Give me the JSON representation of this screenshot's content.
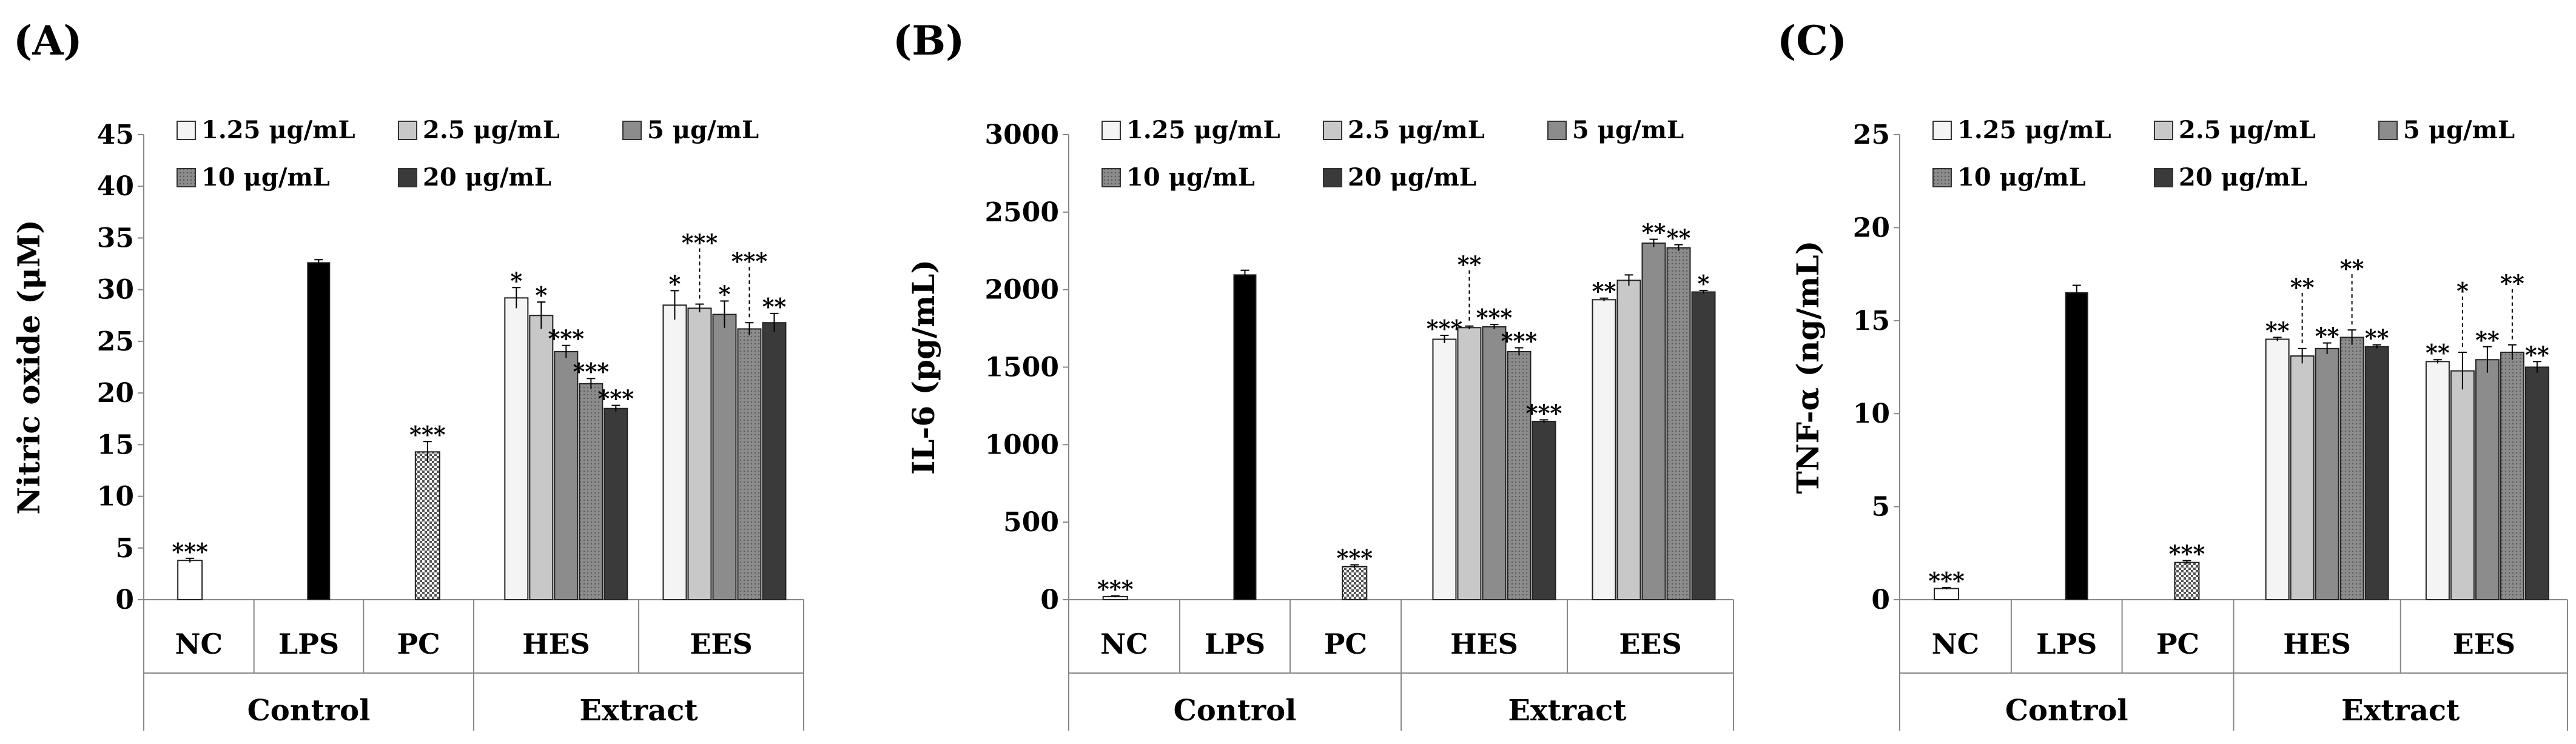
{
  "chart_data": [
    {
      "type": "bar",
      "panel": "(A)",
      "ylabel": "Nitric oxide (μM)",
      "ylim": [
        0,
        45
      ],
      "yticks": [
        "0",
        "5",
        "10",
        "15",
        "20",
        "25",
        "30",
        "35",
        "40",
        "45"
      ],
      "categories": [
        "NC",
        "LPS",
        "PC",
        "HES",
        "EES"
      ],
      "groups": [
        {
          "label": "Control",
          "categories": [
            "NC",
            "LPS",
            "PC"
          ]
        },
        {
          "label": "Extract",
          "categories": [
            "HES",
            "EES"
          ]
        }
      ],
      "legend": [
        "1.25 μg/mL",
        "2.5 μg/mL",
        "5 μg/mL",
        "10 μg/mL",
        "20 μg/mL"
      ],
      "bars": [
        {
          "category": "NC",
          "series": "control",
          "value": 3.8,
          "error": 0.2,
          "sig": "***"
        },
        {
          "category": "LPS",
          "series": "lps",
          "value": 32.6,
          "error": 0.3,
          "sig": ""
        },
        {
          "category": "PC",
          "series": "pc",
          "value": 14.3,
          "error": 1.0,
          "sig": "***"
        },
        {
          "category": "HES",
          "series": "1.25 μg/mL",
          "value": 29.2,
          "error": 1.0,
          "sig": "*"
        },
        {
          "category": "HES",
          "series": "2.5 μg/mL",
          "value": 27.5,
          "error": 1.3,
          "sig": "*"
        },
        {
          "category": "HES",
          "series": "5 μg/mL",
          "value": 24.0,
          "error": 0.6,
          "sig": "***"
        },
        {
          "category": "HES",
          "series": "10 μg/mL",
          "value": 20.9,
          "error": 0.5,
          "sig": "***"
        },
        {
          "category": "HES",
          "series": "20 μg/mL",
          "value": 18.5,
          "error": 0.3,
          "sig": "***"
        },
        {
          "category": "EES",
          "series": "1.25 μg/mL",
          "value": 28.5,
          "error": 1.4,
          "sig": "*"
        },
        {
          "category": "EES",
          "series": "2.5 μg/mL",
          "value": 28.2,
          "error": 0.4,
          "sig": "***",
          "sigHigh": true
        },
        {
          "category": "EES",
          "series": "5 μg/mL",
          "value": 27.6,
          "error": 1.3,
          "sig": "*"
        },
        {
          "category": "EES",
          "series": "10 μg/mL",
          "value": 26.2,
          "error": 0.6,
          "sig": "***",
          "sigHigh": true
        },
        {
          "category": "EES",
          "series": "20 μg/mL",
          "value": 26.8,
          "error": 0.9,
          "sig": "**"
        }
      ]
    },
    {
      "type": "bar",
      "panel": "(B)",
      "ylabel": "IL-6 (pg/mL)",
      "ylim": [
        0,
        3000
      ],
      "yticks": [
        "0",
        "500",
        "1000",
        "1500",
        "2000",
        "2500",
        "3000"
      ],
      "categories": [
        "NC",
        "LPS",
        "PC",
        "HES",
        "EES"
      ],
      "groups": [
        {
          "label": "Control",
          "categories": [
            "NC",
            "LPS",
            "PC"
          ]
        },
        {
          "label": "Extract",
          "categories": [
            "HES",
            "EES"
          ]
        }
      ],
      "legend": [
        "1.25 μg/mL",
        "2.5 μg/mL",
        "5 μg/mL",
        "10 μg/mL",
        "20 μg/mL"
      ],
      "bars": [
        {
          "category": "NC",
          "series": "control",
          "value": 20,
          "error": 5,
          "sig": "***"
        },
        {
          "category": "LPS",
          "series": "lps",
          "value": 2095,
          "error": 30,
          "sig": ""
        },
        {
          "category": "PC",
          "series": "pc",
          "value": 215,
          "error": 10,
          "sig": "***"
        },
        {
          "category": "HES",
          "series": "1.25 μg/mL",
          "value": 1680,
          "error": 25,
          "sig": "***"
        },
        {
          "category": "HES",
          "series": "2.5 μg/mL",
          "value": 1755,
          "error": 10,
          "sig": "**",
          "sigHigh": true
        },
        {
          "category": "HES",
          "series": "5 μg/mL",
          "value": 1760,
          "error": 15,
          "sig": "***"
        },
        {
          "category": "HES",
          "series": "10 μg/mL",
          "value": 1600,
          "error": 25,
          "sig": "***"
        },
        {
          "category": "HES",
          "series": "20 μg/mL",
          "value": 1150,
          "error": 10,
          "sig": "***"
        },
        {
          "category": "EES",
          "series": "1.25 μg/mL",
          "value": 1935,
          "error": 10,
          "sig": "**"
        },
        {
          "category": "EES",
          "series": "2.5 μg/mL",
          "value": 2060,
          "error": 35,
          "sig": ""
        },
        {
          "category": "EES",
          "series": "5 μg/mL",
          "value": 2300,
          "error": 25,
          "sig": "**"
        },
        {
          "category": "EES",
          "series": "10 μg/mL",
          "value": 2270,
          "error": 20,
          "sig": "**"
        },
        {
          "category": "EES",
          "series": "20 μg/mL",
          "value": 1985,
          "error": 10,
          "sig": "*"
        }
      ]
    },
    {
      "type": "bar",
      "panel": "(C)",
      "ylabel": "TNF-α (ng/mL)",
      "ylim": [
        0,
        25
      ],
      "yticks": [
        "0",
        "5",
        "10",
        "15",
        "20",
        "25"
      ],
      "categories": [
        "NC",
        "LPS",
        "PC",
        "HES",
        "EES"
      ],
      "groups": [
        {
          "label": "Control",
          "categories": [
            "NC",
            "LPS",
            "PC"
          ]
        },
        {
          "label": "Extract",
          "categories": [
            "HES",
            "EES"
          ]
        }
      ],
      "legend": [
        "1.25 μg/mL",
        "2.5 μg/mL",
        "5 μg/mL",
        "10 μg/mL",
        "20 μg/mL"
      ],
      "bars": [
        {
          "category": "NC",
          "series": "control",
          "value": 0.6,
          "error": 0.05,
          "sig": "***"
        },
        {
          "category": "LPS",
          "series": "lps",
          "value": 16.5,
          "error": 0.4,
          "sig": ""
        },
        {
          "category": "PC",
          "series": "pc",
          "value": 2.0,
          "error": 0.1,
          "sig": "***"
        },
        {
          "category": "HES",
          "series": "1.25 μg/mL",
          "value": 14.0,
          "error": 0.1,
          "sig": "**"
        },
        {
          "category": "HES",
          "series": "2.5 μg/mL",
          "value": 13.1,
          "error": 0.4,
          "sig": "**",
          "sigHigh": true
        },
        {
          "category": "HES",
          "series": "5 μg/mL",
          "value": 13.5,
          "error": 0.3,
          "sig": "**"
        },
        {
          "category": "HES",
          "series": "10 μg/mL",
          "value": 14.1,
          "error": 0.4,
          "sig": "**",
          "sigHigh": true
        },
        {
          "category": "HES",
          "series": "20 μg/mL",
          "value": 13.6,
          "error": 0.1,
          "sig": "**"
        },
        {
          "category": "EES",
          "series": "1.25 μg/mL",
          "value": 12.8,
          "error": 0.1,
          "sig": "**"
        },
        {
          "category": "EES",
          "series": "2.5 μg/mL",
          "value": 12.3,
          "error": 1.0,
          "sig": "*",
          "sigHigh": true
        },
        {
          "category": "EES",
          "series": "5 μg/mL",
          "value": 12.9,
          "error": 0.7,
          "sig": "**"
        },
        {
          "category": "EES",
          "series": "10 μg/mL",
          "value": 13.3,
          "error": 0.4,
          "sig": "**",
          "sigHigh": true
        },
        {
          "category": "EES",
          "series": "20 μg/mL",
          "value": 12.5,
          "error": 0.3,
          "sig": "**"
        }
      ]
    }
  ],
  "series_colors": {
    "control": "#ffffff",
    "lps": "#000000",
    "pc": "pattern",
    "1.25 μg/mL": "#f4f4f4",
    "2.5 μg/mL": "#c8c8c8",
    "5 μg/mL": "#8c8c8c",
    "10 μg/mL": "#7a7a7a",
    "20 μg/mL": "#3a3a3a"
  }
}
